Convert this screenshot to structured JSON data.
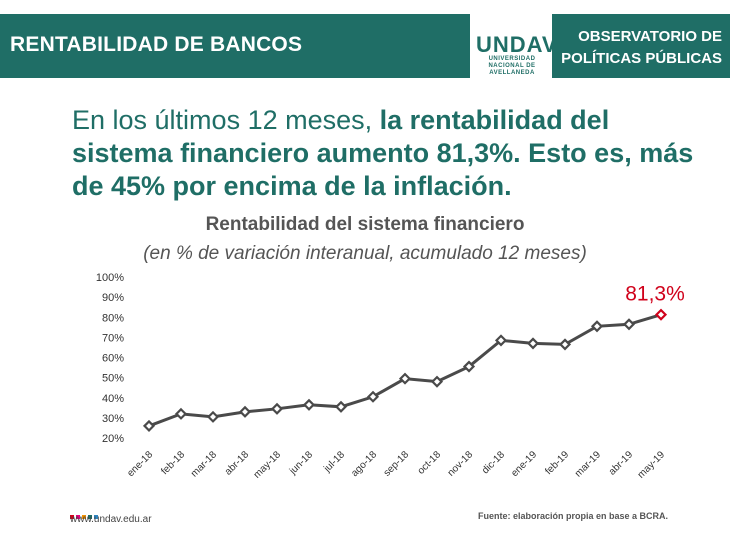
{
  "header": {
    "title": "RENTABILIDAD DE BANCOS",
    "logo_mark": "UNDAV",
    "logo_sub_1": "UNIVERSIDAD",
    "logo_sub_2": "NACIONAL DE",
    "logo_sub_3": "AVELLANEDA",
    "obs_line1": "OBSERVATORIO DE",
    "obs_line2": "POLÍTICAS PÚBLICAS"
  },
  "headline": {
    "part1": "En los últimos 12 meses, ",
    "part2": "la rentabilidad del sistema financiero aumento 81,3%. Esto es, más de 45% por encima de la inflación."
  },
  "footer": {
    "url": "www.undav.edu.ar",
    "source": "Fuente: elaboración propia en base a BCRA."
  },
  "colors": {
    "brand": "#1f6e66",
    "line": "#4a4a4a",
    "highlight": "#d0021b"
  },
  "chart_data": {
    "type": "line",
    "title": "Rentabilidad del sistema financiero",
    "subtitle": "(en % de variación interanual, acumulado 12 meses)",
    "categories": [
      "ene-18",
      "feb-18",
      "mar-18",
      "abr-18",
      "may-18",
      "jun-18",
      "jul-18",
      "ago-18",
      "sep-18",
      "oct-18",
      "nov-18",
      "dic-18",
      "ene-19",
      "feb-19",
      "mar-19",
      "abr-19",
      "may-19"
    ],
    "values": [
      26,
      32,
      30.5,
      33,
      34.5,
      36.5,
      35.5,
      40.5,
      49.5,
      48,
      55.5,
      68.5,
      67,
      66.5,
      75.5,
      76.5,
      81.3
    ],
    "yticks": [
      "20%",
      "30%",
      "40%",
      "50%",
      "60%",
      "70%",
      "80%",
      "90%",
      "100%"
    ],
    "ylim": [
      20,
      100
    ],
    "highlight_label": "81,3%",
    "grid": false,
    "legend": "none"
  }
}
